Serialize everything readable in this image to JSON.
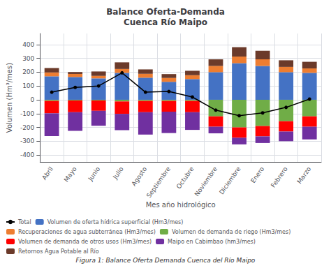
{
  "chart_data": {
    "type": "bar",
    "stacked": true,
    "title": "Balance Oferta-Demanda\nCuenca Río Maipo",
    "xlabel": "Mes año hidrológico",
    "ylabel": "Volumen (Hm³/mes)",
    "caption": "Figura 1: Balance Oferta Demanda Cuenca del Río Maipo",
    "categories": [
      "Abril",
      "Mayo",
      "Junio",
      "Julio",
      "Agosto",
      "Septiembre",
      "Octubre",
      "Noviembre",
      "Diciembre",
      "Enero",
      "Febrero",
      "Marzo"
    ],
    "series": [
      {
        "name": "Total",
        "type": "line",
        "color": "#000000",
        "marker": "circle",
        "line_style": "solid",
        "values": [
          55,
          90,
          100,
          195,
          55,
          60,
          20,
          -75,
          -115,
          -95,
          -55,
          5
        ]
      },
      {
        "name": "Volumen de oferta hídrica superficial (Hm3/mes)",
        "type": "bar",
        "color": "#4472C4",
        "values": [
          170,
          165,
          155,
          195,
          160,
          130,
          150,
          200,
          265,
          245,
          200,
          195
        ]
      },
      {
        "name": "Recuperaciones de agua subterránea (Hm3/mes)",
        "type": "bar",
        "color": "#ED7D31",
        "values": [
          28,
          22,
          18,
          28,
          28,
          28,
          28,
          45,
          48,
          48,
          38,
          32
        ]
      },
      {
        "name": "Volumen de demanda de riego (Hm3/mes)",
        "type": "bar",
        "color": "#70AD47",
        "values": [
          -8,
          -5,
          -5,
          -12,
          -8,
          -8,
          -8,
          -120,
          -200,
          -190,
          -155,
          -120
        ]
      },
      {
        "name": "Volumen de demanda de otros usos (Hm3/mes)",
        "type": "bar",
        "color": "#FF0000",
        "values": [
          -90,
          -85,
          -75,
          -90,
          -82,
          -78,
          -82,
          -75,
          -75,
          -75,
          -75,
          -75
        ]
      },
      {
        "name": "Maipo en Cabimbao (hm3/mes)",
        "type": "bar",
        "color": "#7030A0",
        "values": [
          -165,
          -135,
          -108,
          -118,
          -162,
          -155,
          -128,
          -48,
          -48,
          -48,
          -70,
          -92
        ]
      },
      {
        "name": "Retornos Agua Potable al Río",
        "type": "bar",
        "color": "#6B3A2A",
        "values": [
          32,
          14,
          32,
          48,
          32,
          28,
          32,
          48,
          68,
          62,
          48,
          48
        ]
      }
    ],
    "ylim": [
      -450,
      480
    ],
    "yticks": [
      -400,
      -300,
      -200,
      -100,
      0,
      100,
      200,
      300,
      400
    ],
    "grid": true,
    "legend": "lower left"
  }
}
